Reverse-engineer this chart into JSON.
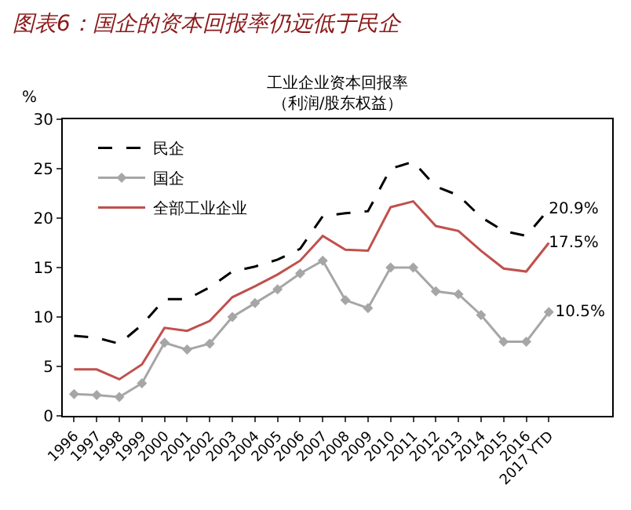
{
  "chart_data": {
    "type": "line",
    "title": "图表6：国企的资本回报率仍远低于民企",
    "subtitle": "工业企业资本回报率（利润/股东权益）",
    "ylabel": "%",
    "categories": [
      "1996",
      "1997",
      "1998",
      "1999",
      "2000",
      "2001",
      "2002",
      "2003",
      "2004",
      "2005",
      "2006",
      "2007",
      "2008",
      "2009",
      "2010",
      "2011",
      "2012",
      "2013",
      "2014",
      "2015",
      "2016",
      "2017 YTD"
    ],
    "series": [
      {
        "name": "民企",
        "color": "#000000",
        "line_style": "dashed",
        "marker": "none",
        "values": [
          8.1,
          7.9,
          7.3,
          9.2,
          11.8,
          11.8,
          13.0,
          14.6,
          15.1,
          15.8,
          16.9,
          20.2,
          20.5,
          20.7,
          25.0,
          25.7,
          23.2,
          22.3,
          20.1,
          18.7,
          18.2,
          20.9
        ],
        "value_labels": [
          null,
          null,
          null,
          null,
          null,
          null,
          null,
          null,
          null,
          null,
          null,
          null,
          null,
          null,
          null,
          null,
          null,
          null,
          null,
          null,
          null,
          "20.9%"
        ]
      },
      {
        "name": "国企",
        "color": "#a6a6a6",
        "line_style": "solid",
        "marker": "diamond",
        "values": [
          2.2,
          2.1,
          1.9,
          3.3,
          7.4,
          6.7,
          7.3,
          10.0,
          11.4,
          12.8,
          14.4,
          15.7,
          11.7,
          10.9,
          15.0,
          15.0,
          12.6,
          12.3,
          10.2,
          7.5,
          7.5,
          10.5
        ],
        "value_labels": [
          null,
          null,
          null,
          null,
          null,
          null,
          null,
          null,
          null,
          null,
          null,
          null,
          null,
          null,
          null,
          null,
          null,
          null,
          null,
          null,
          null,
          "10.5%"
        ]
      },
      {
        "name": "全部工业企业",
        "color": "#c0504d",
        "line_style": "solid",
        "marker": "none",
        "values": [
          4.7,
          4.7,
          3.7,
          5.2,
          8.9,
          8.6,
          9.6,
          12.0,
          13.1,
          14.3,
          15.7,
          18.2,
          16.8,
          16.7,
          21.1,
          21.7,
          19.2,
          18.7,
          16.7,
          14.9,
          14.6,
          17.5
        ],
        "value_labels": [
          null,
          null,
          null,
          null,
          null,
          null,
          null,
          null,
          null,
          null,
          null,
          null,
          null,
          null,
          null,
          null,
          null,
          null,
          null,
          null,
          null,
          "17.5%"
        ]
      }
    ],
    "ylim": [
      0,
      30
    ],
    "yticks": [
      0,
      5,
      10,
      15,
      20,
      25,
      30
    ],
    "grid": false,
    "legend": "top left"
  }
}
